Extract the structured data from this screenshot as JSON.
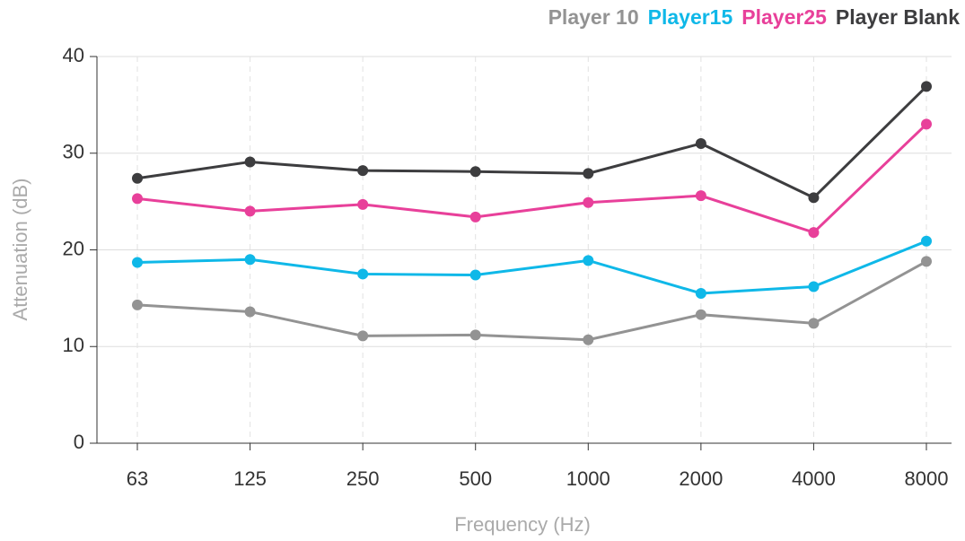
{
  "chart_data": {
    "type": "line",
    "x_label": "Frequency (Hz)",
    "y_label": "Attenuation (dB)",
    "categories": [
      "63",
      "125",
      "250",
      "500",
      "1000",
      "2000",
      "4000",
      "8000"
    ],
    "ylim": [
      0,
      40
    ],
    "yticks": [
      0,
      10,
      20,
      30,
      40
    ],
    "grid": true,
    "legend": "top-right",
    "series": [
      {
        "name": "Player 10",
        "color": "#939393",
        "values": [
          14.3,
          13.6,
          11.1,
          11.2,
          10.7,
          13.3,
          12.4,
          18.8
        ]
      },
      {
        "name": "Player15",
        "color": "#0fb8e8",
        "values": [
          18.7,
          19.0,
          17.5,
          17.4,
          18.9,
          15.5,
          16.2,
          20.9
        ]
      },
      {
        "name": "Player25",
        "color": "#e8409a",
        "values": [
          25.3,
          24.0,
          24.7,
          23.4,
          24.9,
          25.6,
          21.8,
          33.0
        ]
      },
      {
        "name": "Player Blank",
        "color": "#3d3d3f",
        "values": [
          27.4,
          29.1,
          28.2,
          28.1,
          27.9,
          31.0,
          25.4,
          36.9
        ]
      }
    ]
  }
}
